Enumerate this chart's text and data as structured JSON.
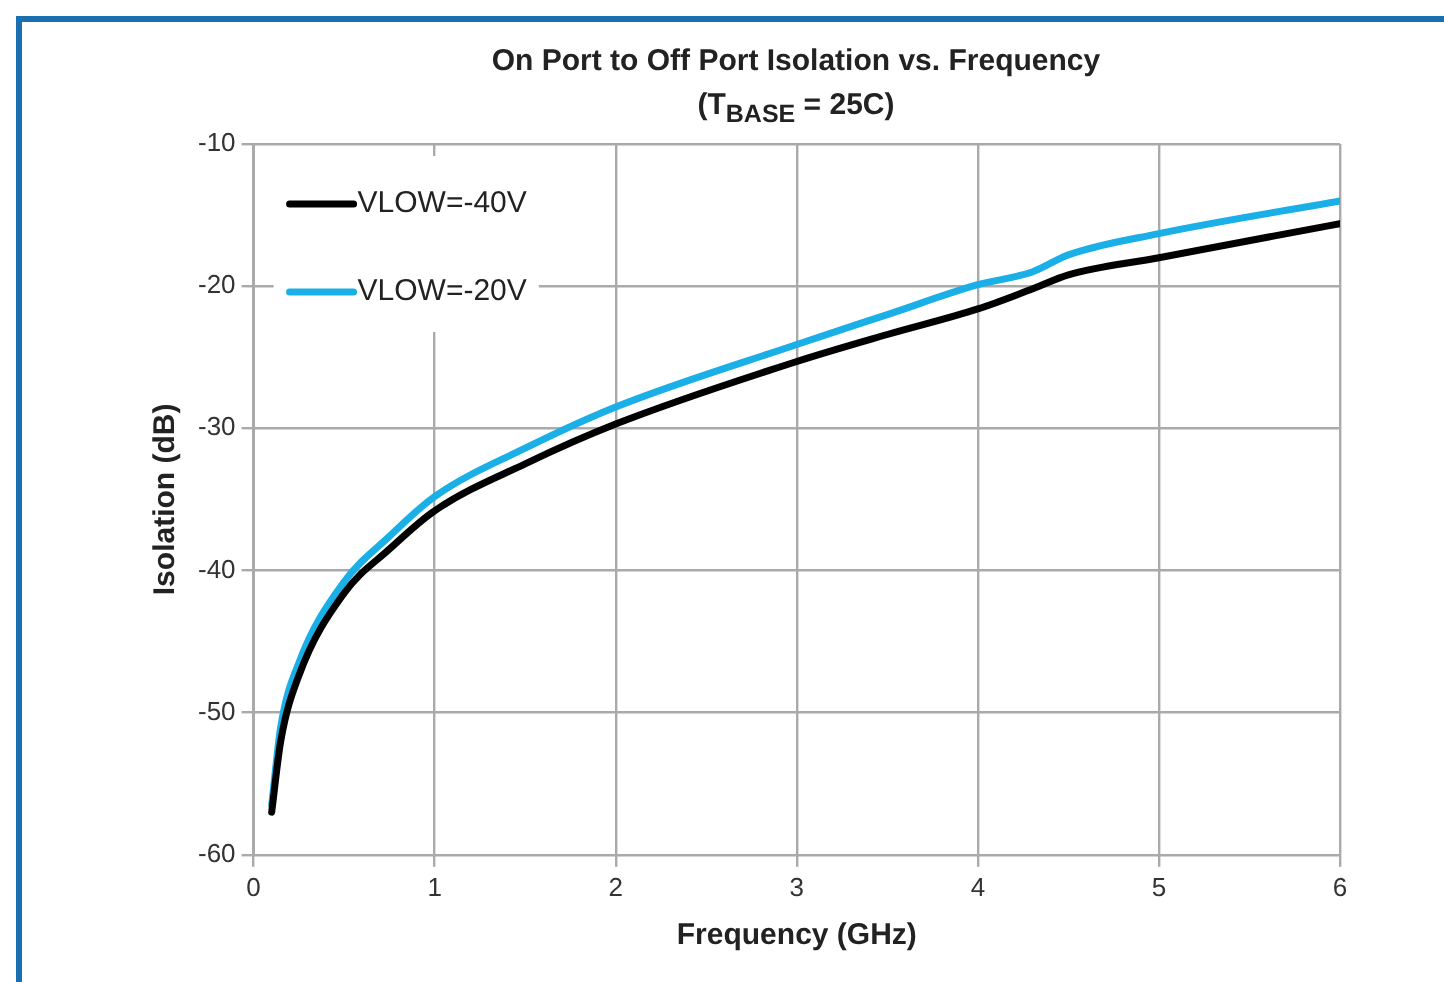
{
  "chart_data": {
    "type": "line",
    "title": "On Port to Off Port Isolation vs. Frequency",
    "subtitle": "(T$_{BASE}$ = 25C)",
    "xlabel": "Frequency (GHz)",
    "ylabel": "Isolation (dB)",
    "xlim": [
      0,
      6
    ],
    "xticks": [
      0,
      1,
      2,
      3,
      4,
      5,
      6
    ],
    "ylim": [
      -60,
      -10
    ],
    "yticks": [
      -60,
      -50,
      -40,
      -30,
      -20,
      -10
    ],
    "grid": true,
    "legend": "top left",
    "marker": "none",
    "line_style": "solid",
    "series": [
      {
        "name": "VLOW=-40V",
        "color": "#000000",
        "x": [
          0.1,
          0.15,
          0.25,
          0.5,
          0.75,
          1,
          1.5,
          2,
          3,
          3.5,
          4,
          4.3,
          4.5,
          5,
          6
        ],
        "values": [
          -57,
          -52,
          -47.4,
          -41.6,
          -38.5,
          -35.8,
          -32.5,
          -29.7,
          -25.3,
          -23.4,
          -21.6,
          -20.2,
          -19.2,
          -18,
          -15.6
        ]
      },
      {
        "name": "VLOW=-20V",
        "color": "#1aafe6",
        "x": [
          0.1,
          0.15,
          0.25,
          0.5,
          0.75,
          1,
          1.5,
          2,
          3,
          3.5,
          4,
          4.3,
          4.5,
          5,
          6
        ],
        "values": [
          -56.5,
          -51,
          -46.5,
          -40.8,
          -37.6,
          -34.8,
          -31.4,
          -28.5,
          -24.1,
          -22,
          -19.9,
          -19,
          -17.8,
          -16.3,
          -14
        ]
      }
    ]
  }
}
